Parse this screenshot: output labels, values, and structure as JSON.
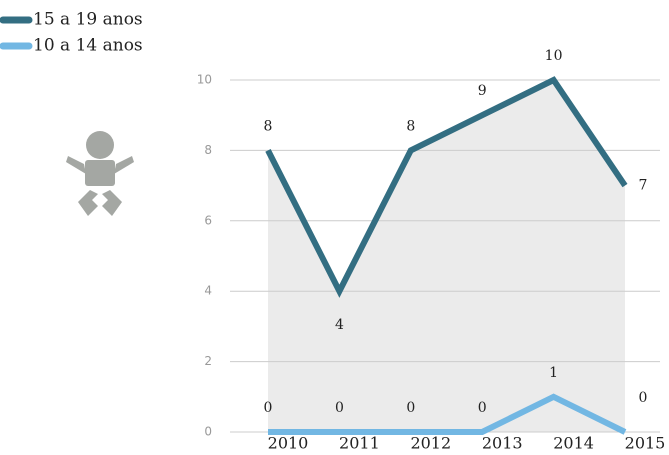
{
  "chart_data": {
    "type": "line",
    "categories": [
      "2010",
      "2011",
      "2012",
      "2013",
      "2014",
      "2015"
    ],
    "series": [
      {
        "name": "15 a 19 anos",
        "color": "#336e82",
        "values": [
          8,
          4,
          8,
          9,
          10,
          7
        ]
      },
      {
        "name": "10 a 14 anos",
        "color": "#72b7e3",
        "values": [
          0,
          0,
          0,
          0,
          1,
          0
        ]
      }
    ],
    "ylim": [
      0,
      10
    ],
    "yticks": [
      0,
      2,
      4,
      6,
      8,
      10
    ],
    "grid": true
  }
}
